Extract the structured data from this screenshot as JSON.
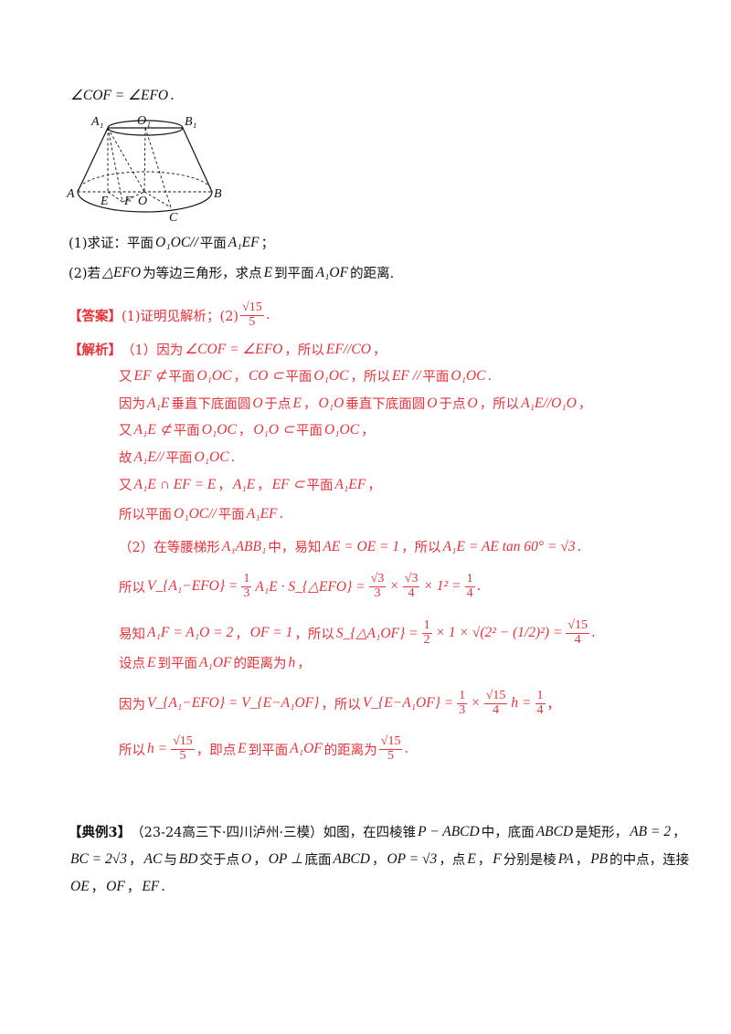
{
  "figure": {
    "labels": {
      "A1": "A₁",
      "O1": "O₁",
      "B1": "B₁",
      "A": "A",
      "B": "B",
      "E": "E",
      "F": "F",
      "O": "O",
      "C": "C"
    }
  },
  "lines": [
    {
      "color": "black",
      "segs": [
        {
          "m": "∠COF = ∠EFO"
        },
        {
          "t": "."
        }
      ]
    },
    {
      "color": "black",
      "segs": [
        {
          "t": "(1)求证：平面"
        },
        {
          "m": "O₁OC//"
        },
        {
          "t": "平面"
        },
        {
          "m": "A₁EF"
        },
        {
          "t": "；"
        }
      ]
    },
    {
      "color": "black",
      "segs": [
        {
          "t": "(2)若"
        },
        {
          "m": "△EFO"
        },
        {
          "t": "为等边三角形，求点"
        },
        {
          "m": "E"
        },
        {
          "t": "到平面"
        },
        {
          "m": "A₁OF"
        },
        {
          "t": "的距离."
        }
      ]
    },
    {
      "color": "red",
      "segs": [
        {
          "tag": "【答案】"
        },
        {
          "t": "(1)证明见解析；(2)"
        },
        {
          "f": [
            "√15",
            "5"
          ]
        },
        {
          "t": "."
        }
      ]
    },
    {
      "color": "red",
      "segs": [
        {
          "tag": "【解析】"
        },
        {
          "t": "（1）因为"
        },
        {
          "m": "∠COF = ∠EFO"
        },
        {
          "t": "，所以"
        },
        {
          "m": "EF//CO"
        },
        {
          "t": "，"
        }
      ]
    },
    {
      "color": "red",
      "segs": [
        {
          "t": "又"
        },
        {
          "m": "EF ⊄"
        },
        {
          "t": "平面"
        },
        {
          "m": "O₁OC"
        },
        {
          "t": "，"
        },
        {
          "m": "CO ⊂"
        },
        {
          "t": "平面"
        },
        {
          "m": "O₁OC"
        },
        {
          "t": "，所以"
        },
        {
          "m": "EF //"
        },
        {
          "t": "平面"
        },
        {
          "m": "O₁OC"
        },
        {
          "t": "."
        }
      ]
    },
    {
      "color": "red",
      "segs": [
        {
          "t": "因为"
        },
        {
          "m": "A₁E"
        },
        {
          "t": "垂直下底面圆"
        },
        {
          "m": "O"
        },
        {
          "t": "于点"
        },
        {
          "m": "E"
        },
        {
          "t": "，"
        },
        {
          "m": "O₁O"
        },
        {
          "t": "垂直下底面圆"
        },
        {
          "m": "O"
        },
        {
          "t": "于点"
        },
        {
          "m": "O"
        },
        {
          "t": "，所以"
        },
        {
          "m": "A₁E//O₁O"
        },
        {
          "t": "，"
        }
      ]
    },
    {
      "color": "red",
      "segs": [
        {
          "t": "又"
        },
        {
          "m": "A₁E ⊄"
        },
        {
          "t": "平面"
        },
        {
          "m": "O₁OC"
        },
        {
          "t": "，"
        },
        {
          "m": "O₁O ⊂"
        },
        {
          "t": "平面"
        },
        {
          "m": "O₁OC"
        },
        {
          "t": "，"
        }
      ]
    },
    {
      "color": "red",
      "segs": [
        {
          "t": "故"
        },
        {
          "m": "A₁E//"
        },
        {
          "t": "平面"
        },
        {
          "m": "O₁OC"
        },
        {
          "t": "."
        }
      ]
    },
    {
      "color": "red",
      "segs": [
        {
          "t": "又"
        },
        {
          "m": "A₁E ∩ EF = E"
        },
        {
          "t": "，"
        },
        {
          "m": "A₁E"
        },
        {
          "t": "，"
        },
        {
          "m": "EF ⊂"
        },
        {
          "t": "平面"
        },
        {
          "m": "A₁EF"
        },
        {
          "t": "，"
        }
      ]
    },
    {
      "color": "red",
      "segs": [
        {
          "t": "所以平面"
        },
        {
          "m": "O₁OC//"
        },
        {
          "t": "平面"
        },
        {
          "m": "A₁EF"
        },
        {
          "t": "."
        }
      ]
    },
    {
      "color": "red",
      "segs": [
        {
          "t": "（2）在等腰梯形"
        },
        {
          "m": "A₁ABB₁"
        },
        {
          "t": "中，易知"
        },
        {
          "m": "AE = OE = 1"
        },
        {
          "t": "，所以"
        },
        {
          "m": "A₁E = AE tan 60° = √3"
        },
        {
          "t": "."
        }
      ]
    },
    {
      "color": "red",
      "segs": [
        {
          "t": "所以"
        },
        {
          "m": "V_{A₁−EFO} ="
        },
        {
          "f": [
            "1",
            "3"
          ]
        },
        {
          "m": "A₁E · S_{△EFO} ="
        },
        {
          "f": [
            "√3",
            "3"
          ]
        },
        {
          "m": "×"
        },
        {
          "f": [
            "√3",
            "4"
          ]
        },
        {
          "m": "× 1² ="
        },
        {
          "f": [
            "1",
            "4"
          ]
        },
        {
          "t": "."
        }
      ]
    },
    {
      "color": "red",
      "segs": [
        {
          "t": "易知"
        },
        {
          "m": "A₁F = A₁O = 2"
        },
        {
          "t": "，"
        },
        {
          "m": "OF = 1"
        },
        {
          "t": "，所以"
        },
        {
          "m": "S_{△A₁OF} ="
        },
        {
          "f": [
            "1",
            "2"
          ]
        },
        {
          "m": "× 1 × √(2² − (1/2)²) ="
        },
        {
          "f": [
            "√15",
            "4"
          ]
        },
        {
          "t": "."
        }
      ]
    },
    {
      "color": "red",
      "segs": [
        {
          "t": "设点"
        },
        {
          "m": "E"
        },
        {
          "t": "到平面"
        },
        {
          "m": "A₁OF"
        },
        {
          "t": "的距离为"
        },
        {
          "m": "h"
        },
        {
          "t": "，"
        }
      ]
    },
    {
      "color": "red",
      "segs": [
        {
          "t": "因为"
        },
        {
          "m": "V_{A₁−EFO} = V_{E−A₁OF}"
        },
        {
          "t": "，所以"
        },
        {
          "m": "V_{E−A₁OF} ="
        },
        {
          "f": [
            "1",
            "3"
          ]
        },
        {
          "m": "×"
        },
        {
          "f": [
            "√15",
            "4"
          ]
        },
        {
          "m": "h ="
        },
        {
          "f": [
            "1",
            "4"
          ]
        },
        {
          "t": "，"
        }
      ]
    },
    {
      "color": "red",
      "segs": [
        {
          "t": "所以"
        },
        {
          "m": "h ="
        },
        {
          "f": [
            "√15",
            "5"
          ]
        },
        {
          "t": "，即点"
        },
        {
          "m": "E"
        },
        {
          "t": "到平面"
        },
        {
          "m": "A₁OF"
        },
        {
          "t": "的距离为"
        },
        {
          "f": [
            "√15",
            "5"
          ]
        },
        {
          "t": "."
        }
      ]
    },
    {
      "color": "black",
      "segs": [
        {
          "tag": "【典例3】"
        },
        {
          "t": "（23-24高三下·四川泸州·三模）如图，在四棱锥"
        },
        {
          "m": "P − ABCD"
        },
        {
          "t": "中，底面"
        },
        {
          "m": "ABCD"
        },
        {
          "t": "是矩形，"
        },
        {
          "m": "AB = 2"
        },
        {
          "t": "，"
        }
      ]
    },
    {
      "color": "black",
      "segs": [
        {
          "m": "BC = 2√3"
        },
        {
          "t": "，"
        },
        {
          "m": "AC"
        },
        {
          "t": "与"
        },
        {
          "m": "BD"
        },
        {
          "t": "交于点"
        },
        {
          "m": "O"
        },
        {
          "t": "，"
        },
        {
          "m": "OP ⊥"
        },
        {
          "t": "底面"
        },
        {
          "m": "ABCD"
        },
        {
          "t": "，"
        },
        {
          "m": "OP = √3"
        },
        {
          "t": "，点"
        },
        {
          "m": "E"
        },
        {
          "t": "，"
        },
        {
          "m": "F"
        },
        {
          "t": "分别是棱"
        },
        {
          "m": "PA"
        },
        {
          "t": "，"
        },
        {
          "m": "PB"
        },
        {
          "t": "的中点，连接"
        }
      ]
    },
    {
      "color": "black",
      "segs": [
        {
          "m": "OE"
        },
        {
          "t": "，"
        },
        {
          "m": "OF"
        },
        {
          "t": "，"
        },
        {
          "m": "EF"
        },
        {
          "t": "."
        }
      ]
    }
  ]
}
